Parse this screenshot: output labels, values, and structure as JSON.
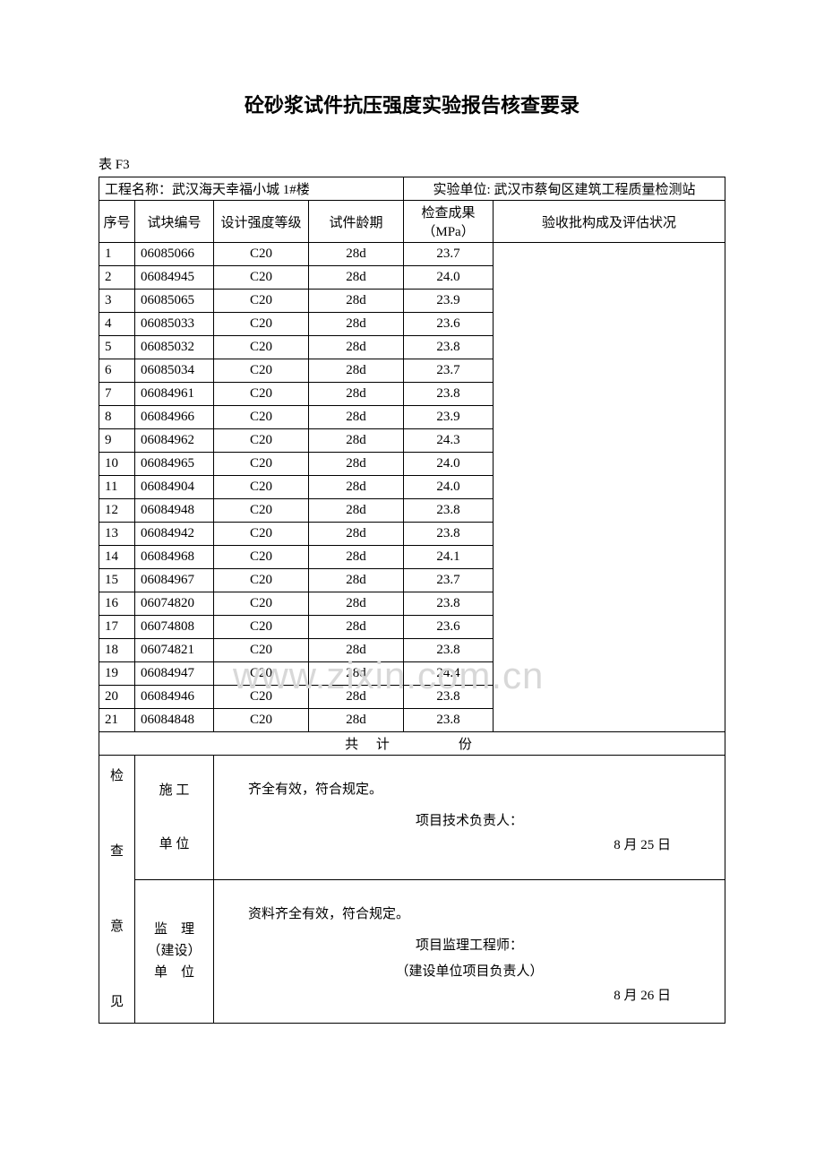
{
  "title": "砼砂浆试件抗压强度实验报告核查要录",
  "table_label": "表 F3",
  "header": {
    "project_label": "工程名称：",
    "project_name": "武汉海天幸福小城 1#楼",
    "unit_label": "实验单位:",
    "unit_name": "武汉市蔡甸区建筑工程质量检测站"
  },
  "columns": {
    "seq": "序号",
    "block_no": "试块编号",
    "grade": "设计强度等级",
    "age": "试件龄期",
    "result": "检查成果（MPa）",
    "batch": "验收批构成及评估状况"
  },
  "rows": [
    {
      "seq": "1",
      "no": "06085066",
      "grade": "C20",
      "age": "28d",
      "mpa": "23.7"
    },
    {
      "seq": "2",
      "no": "06084945",
      "grade": "C20",
      "age": "28d",
      "mpa": "24.0"
    },
    {
      "seq": "3",
      "no": "06085065",
      "grade": "C20",
      "age": "28d",
      "mpa": "23.9"
    },
    {
      "seq": "4",
      "no": "06085033",
      "grade": "C20",
      "age": "28d",
      "mpa": "23.6"
    },
    {
      "seq": "5",
      "no": "06085032",
      "grade": "C20",
      "age": "28d",
      "mpa": "23.8"
    },
    {
      "seq": "6",
      "no": "06085034",
      "grade": "C20",
      "age": "28d",
      "mpa": "23.7"
    },
    {
      "seq": "7",
      "no": "06084961",
      "grade": "C20",
      "age": "28d",
      "mpa": "23.8"
    },
    {
      "seq": "8",
      "no": "06084966",
      "grade": "C20",
      "age": "28d",
      "mpa": "23.9"
    },
    {
      "seq": "9",
      "no": "06084962",
      "grade": "C20",
      "age": "28d",
      "mpa": "24.3"
    },
    {
      "seq": "10",
      "no": "06084965",
      "grade": "C20",
      "age": "28d",
      "mpa": "24.0"
    },
    {
      "seq": "11",
      "no": "06084904",
      "grade": "C20",
      "age": "28d",
      "mpa": "24.0"
    },
    {
      "seq": "12",
      "no": "06084948",
      "grade": "C20",
      "age": "28d",
      "mpa": "23.8"
    },
    {
      "seq": "13",
      "no": "06084942",
      "grade": "C20",
      "age": "28d",
      "mpa": "23.8"
    },
    {
      "seq": "14",
      "no": "06084968",
      "grade": "C20",
      "age": "28d",
      "mpa": "24.1"
    },
    {
      "seq": "15",
      "no": "06084967",
      "grade": "C20",
      "age": "28d",
      "mpa": "23.7"
    },
    {
      "seq": "16",
      "no": "06074820",
      "grade": "C20",
      "age": "28d",
      "mpa": "23.8"
    },
    {
      "seq": "17",
      "no": "06074808",
      "grade": "C20",
      "age": "28d",
      "mpa": "23.6"
    },
    {
      "seq": "18",
      "no": "06074821",
      "grade": "C20",
      "age": "28d",
      "mpa": "23.8"
    },
    {
      "seq": "19",
      "no": "06084947",
      "grade": "C20",
      "age": "28d",
      "mpa": "24.4"
    },
    {
      "seq": "20",
      "no": "06084946",
      "grade": "C20",
      "age": "28d",
      "mpa": "23.8"
    },
    {
      "seq": "21",
      "no": "06084848",
      "grade": "C20",
      "age": "28d",
      "mpa": "23.8"
    }
  ],
  "total_row": "共 计　　　份",
  "opinion": {
    "section_label": "检查意见",
    "construction": {
      "party": "施 工 单 位",
      "text": "齐全有效，符合规定。",
      "signer": "项目技术负责人：",
      "date": "8 月 25 日"
    },
    "supervision": {
      "party_line1": "监　理",
      "party_line2": "（建设）",
      "party_line3": "单　位",
      "text": "资料齐全有效，符合规定。",
      "signer1": "项目监理工程师：",
      "signer2": "（建设单位项目负责人）",
      "date": "8 月 26 日"
    }
  },
  "watermark": "www.zixin.com.cn",
  "column_widths": {
    "seq": "40px",
    "no": "88px",
    "grade": "106px",
    "age": "106px",
    "mpa": "100px",
    "batch": "auto"
  },
  "colors": {
    "text": "#000000",
    "background": "#ffffff",
    "border": "#000000",
    "watermark": "#d8d8d8"
  }
}
